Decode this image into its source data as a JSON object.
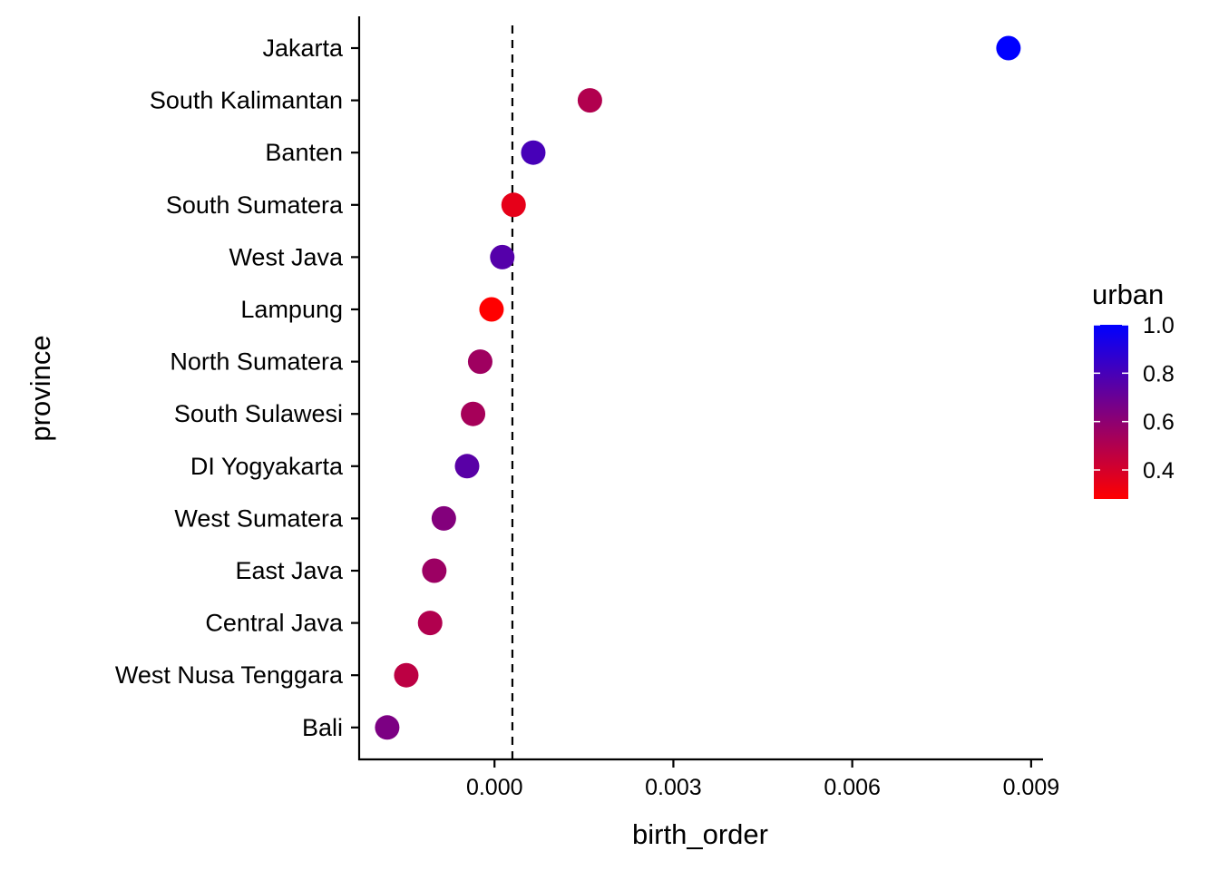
{
  "chart_data": {
    "type": "scatter",
    "xlabel": "birth_order",
    "ylabel": "province",
    "xlim": [
      -0.00227,
      0.0092
    ],
    "x_ticks": [
      0.0,
      0.003,
      0.006,
      0.009
    ],
    "x_tick_labels": [
      "0.000",
      "0.003",
      "0.006",
      "0.009"
    ],
    "reference_line": {
      "x": 0.0003,
      "style": "dashed"
    },
    "categories": [
      "Jakarta",
      "South Kalimantan",
      "Banten",
      "South Sumatera",
      "West Java",
      "Lampung",
      "North Sumatera",
      "South Sulawesi",
      "DI Yogyakarta",
      "West Sumatera",
      "East Java",
      "Central Java",
      "West Nusa Tenggara",
      "Bali"
    ],
    "points": [
      {
        "province": "Jakarta",
        "x": 0.00862,
        "urban": 1.0
      },
      {
        "province": "South Kalimantan",
        "x": 0.0016,
        "urban": 0.5
      },
      {
        "province": "Banten",
        "x": 0.00065,
        "urban": 0.8
      },
      {
        "province": "South Sumatera",
        "x": 0.00032,
        "urban": 0.35
      },
      {
        "province": "West Java",
        "x": 0.00013,
        "urban": 0.76
      },
      {
        "province": "Lampung",
        "x": -5e-05,
        "urban": 0.28
      },
      {
        "province": "North Sumatera",
        "x": -0.00024,
        "urban": 0.55
      },
      {
        "province": "South Sulawesi",
        "x": -0.00036,
        "urban": 0.53
      },
      {
        "province": "DI Yogyakarta",
        "x": -0.00046,
        "urban": 0.75
      },
      {
        "province": "West Sumatera",
        "x": -0.00085,
        "urban": 0.63
      },
      {
        "province": "East Java",
        "x": -0.00101,
        "urban": 0.56
      },
      {
        "province": "Central Java",
        "x": -0.00108,
        "urban": 0.5
      },
      {
        "province": "West Nusa Tenggara",
        "x": -0.00148,
        "urban": 0.47
      },
      {
        "province": "Bali",
        "x": -0.0018,
        "urban": 0.65
      }
    ],
    "color_scale": {
      "name": "urban",
      "low": 0.28,
      "high": 1.0,
      "low_color": "#ff0000",
      "high_color": "#0000ff",
      "ticks": [
        1.0,
        0.8,
        0.6,
        0.4
      ],
      "tick_labels": [
        "1.0",
        "0.8",
        "0.6",
        "0.4"
      ]
    },
    "legend_position": "right",
    "grid": false
  }
}
